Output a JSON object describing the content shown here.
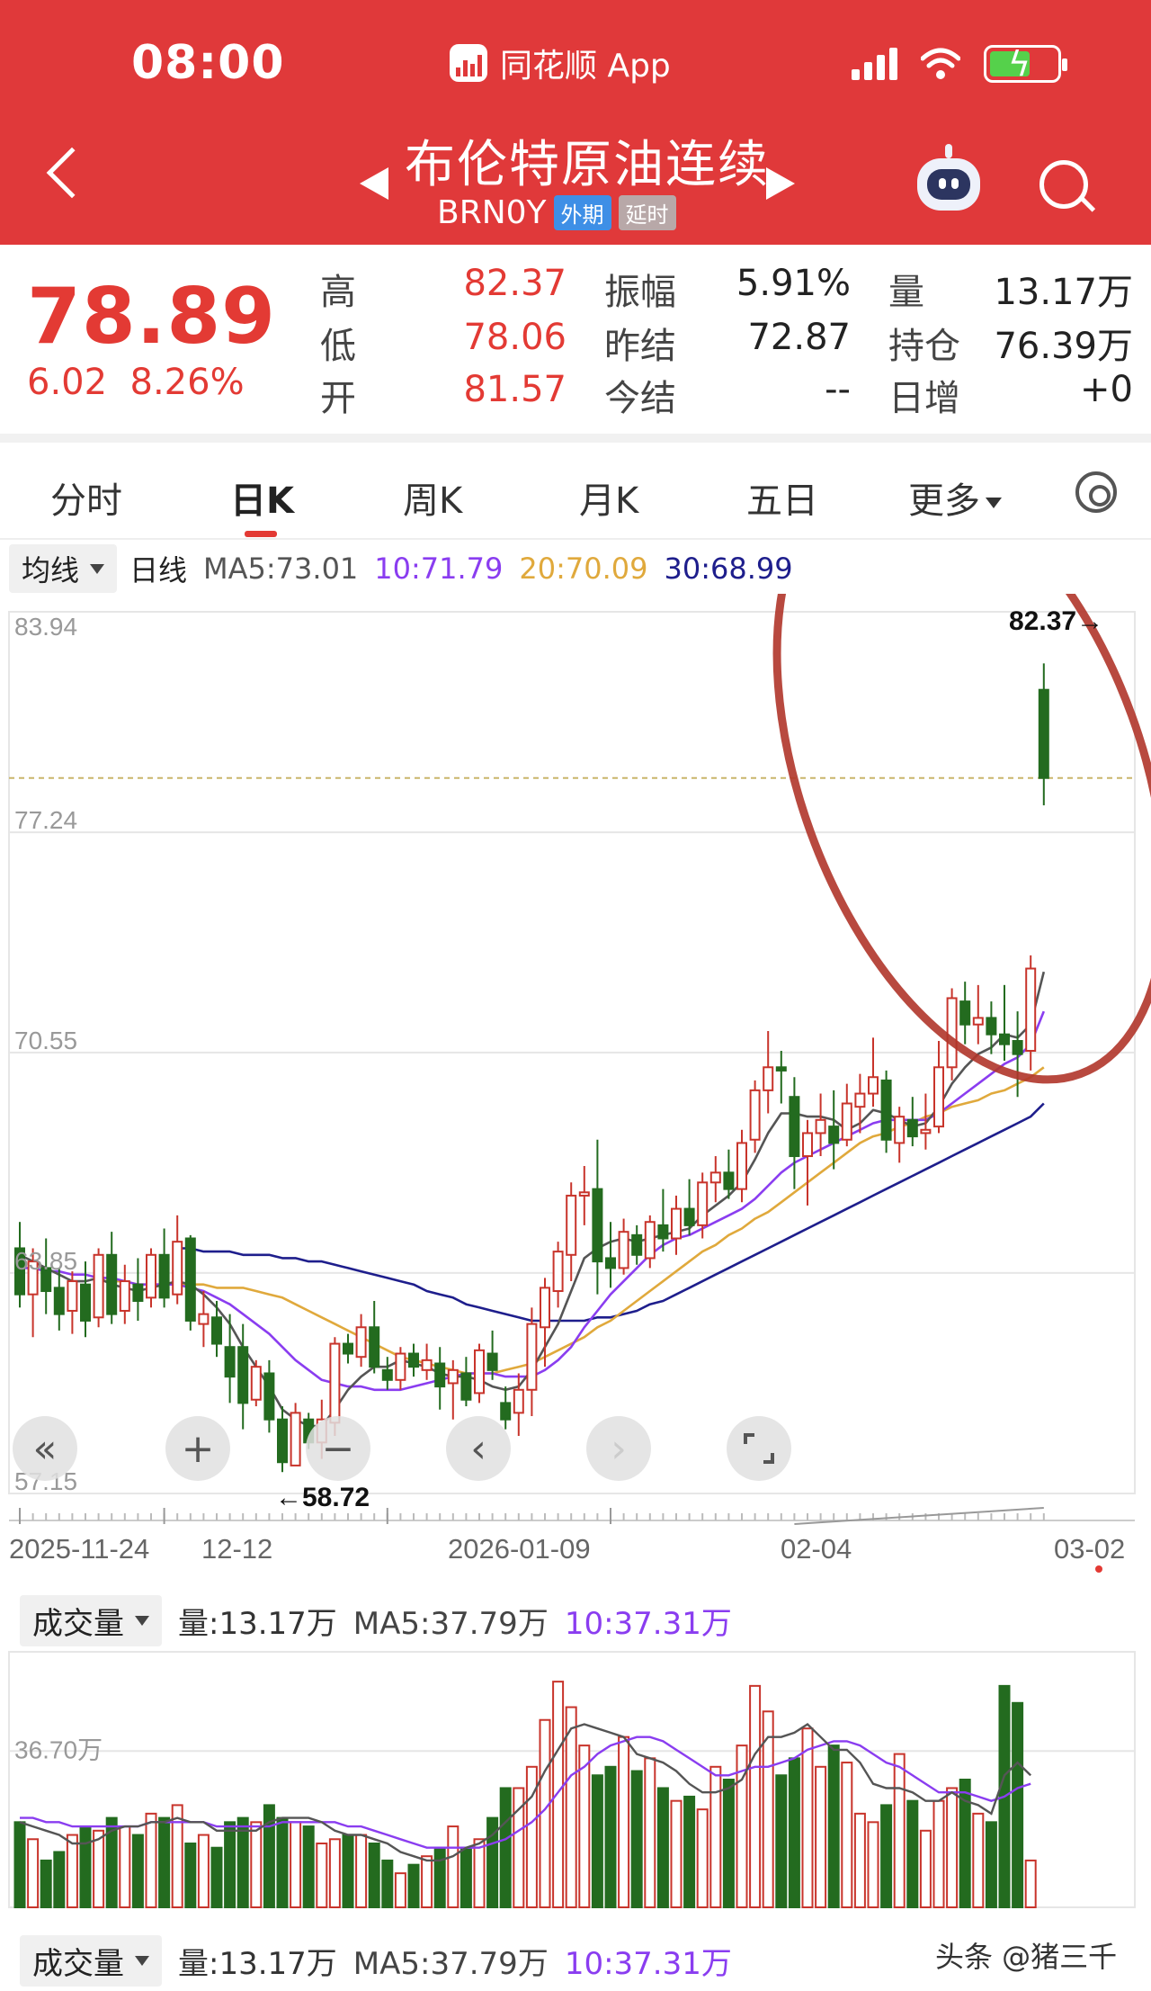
{
  "status_bar": {
    "time": "08:00",
    "app_name": "同花顺 App"
  },
  "header": {
    "title": "布伦特原油连续",
    "code": "BRN0Y",
    "badge_market": "外期",
    "badge_delay": "延时"
  },
  "quote": {
    "price": "78.89",
    "change": "6.02",
    "change_pct": "8.26%",
    "high_label": "高",
    "high": "82.37",
    "low_label": "低",
    "low": "78.06",
    "open_label": "开",
    "open": "81.57",
    "amplitude_label": "振幅",
    "amplitude": "5.91%",
    "prev_settle_label": "昨结",
    "prev_settle": "72.87",
    "settle_label": "今结",
    "settle": "--",
    "volume_label": "量",
    "volume": "13.17万",
    "open_interest_label": "持仓",
    "open_interest": "76.39万",
    "daily_change_label": "日增",
    "daily_change": "+0"
  },
  "tabs": [
    "分时",
    "日K",
    "周K",
    "月K",
    "五日",
    "更多"
  ],
  "active_tab": "日K",
  "ma_legend": {
    "dropdown": "均线",
    "period": "日线",
    "ma5": "MA5:73.01",
    "ma10": "10:71.79",
    "ma20": "20:70.09",
    "ma30": "30:68.99"
  },
  "colors": {
    "header_red": "#e0393a",
    "up_red": "#c8342b",
    "down_green": "#236b1f",
    "ma5": "#555555",
    "ma10": "#8a3df0",
    "ma20": "#e0a93c",
    "ma30": "#1e1e8c",
    "circle": "#b0352a"
  },
  "price_axis": [
    "83.94",
    "77.24",
    "70.55",
    "63.85",
    "57.15"
  ],
  "chart_annotations": {
    "high_marker": "82.37→",
    "low_marker": "←58.72"
  },
  "date_axis": [
    "2025-11-24",
    "12-12",
    "2026-01-09",
    "02-04",
    "03-02"
  ],
  "controls": [
    "fast-back",
    "zoom-in",
    "zoom-out",
    "step-left",
    "step-right",
    "fullscreen"
  ],
  "volume_panel": {
    "dropdown": "成交量",
    "volume": "量:13.17万",
    "ma5": "MA5:37.79万",
    "ma10": "10:37.31万",
    "axis_label": "36.70万"
  },
  "volume_panel_2": {
    "dropdown": "成交量",
    "volume": "量:13.17万",
    "ma5": "MA5:37.79万",
    "ma10": "10:37.31万"
  },
  "watermark": "头条 @猪三千",
  "chart_data": {
    "type": "candlestick",
    "ylim": [
      57.15,
      83.94
    ],
    "candles": [
      {
        "o": 64.6,
        "h": 65.4,
        "l": 62.8,
        "c": 63.2
      },
      {
        "o": 63.2,
        "h": 64.6,
        "l": 61.9,
        "c": 64.2
      },
      {
        "o": 64.0,
        "h": 64.9,
        "l": 62.6,
        "c": 63.3
      },
      {
        "o": 63.4,
        "h": 64.0,
        "l": 62.1,
        "c": 62.6
      },
      {
        "o": 62.7,
        "h": 63.9,
        "l": 62.0,
        "c": 63.6
      },
      {
        "o": 63.5,
        "h": 64.2,
        "l": 61.9,
        "c": 62.4
      },
      {
        "o": 62.5,
        "h": 64.6,
        "l": 62.2,
        "c": 64.4
      },
      {
        "o": 64.4,
        "h": 65.1,
        "l": 62.3,
        "c": 62.6
      },
      {
        "o": 62.7,
        "h": 64.1,
        "l": 62.3,
        "c": 63.6
      },
      {
        "o": 63.5,
        "h": 64.3,
        "l": 62.4,
        "c": 63.0
      },
      {
        "o": 63.1,
        "h": 64.6,
        "l": 62.8,
        "c": 64.4
      },
      {
        "o": 64.4,
        "h": 65.2,
        "l": 62.8,
        "c": 63.1
      },
      {
        "o": 63.2,
        "h": 65.6,
        "l": 62.9,
        "c": 64.8
      },
      {
        "o": 64.9,
        "h": 65.0,
        "l": 62.1,
        "c": 62.4
      },
      {
        "o": 62.3,
        "h": 63.3,
        "l": 61.6,
        "c": 62.6
      },
      {
        "o": 62.5,
        "h": 63.0,
        "l": 61.3,
        "c": 61.7
      },
      {
        "o": 61.6,
        "h": 62.6,
        "l": 59.9,
        "c": 60.7
      },
      {
        "o": 61.6,
        "h": 62.3,
        "l": 59.1,
        "c": 59.9
      },
      {
        "o": 60.0,
        "h": 61.2,
        "l": 59.8,
        "c": 61.0
      },
      {
        "o": 60.8,
        "h": 61.2,
        "l": 59.0,
        "c": 59.4
      },
      {
        "o": 59.4,
        "h": 59.8,
        "l": 57.8,
        "c": 58.1
      },
      {
        "o": 58.0,
        "h": 59.9,
        "l": 58.0,
        "c": 59.6
      },
      {
        "o": 59.4,
        "h": 59.6,
        "l": 58.5,
        "c": 58.7
      },
      {
        "o": 58.7,
        "h": 60.0,
        "l": 58.2,
        "c": 59.4
      },
      {
        "o": 59.3,
        "h": 61.9,
        "l": 58.9,
        "c": 61.7
      },
      {
        "o": 61.7,
        "h": 62.0,
        "l": 61.1,
        "c": 61.4
      },
      {
        "o": 61.3,
        "h": 62.6,
        "l": 61.0,
        "c": 62.2
      },
      {
        "o": 62.2,
        "h": 63.0,
        "l": 60.8,
        "c": 61.0
      },
      {
        "o": 60.9,
        "h": 61.3,
        "l": 60.3,
        "c": 60.6
      },
      {
        "o": 60.6,
        "h": 61.6,
        "l": 60.3,
        "c": 61.4
      },
      {
        "o": 61.4,
        "h": 61.7,
        "l": 60.7,
        "c": 61.0
      },
      {
        "o": 60.9,
        "h": 61.7,
        "l": 60.6,
        "c": 61.2
      },
      {
        "o": 61.1,
        "h": 61.6,
        "l": 59.7,
        "c": 60.4
      },
      {
        "o": 60.5,
        "h": 61.2,
        "l": 59.4,
        "c": 60.9
      },
      {
        "o": 60.8,
        "h": 61.3,
        "l": 59.8,
        "c": 60.0
      },
      {
        "o": 60.2,
        "h": 61.7,
        "l": 59.9,
        "c": 61.5
      },
      {
        "o": 61.4,
        "h": 62.1,
        "l": 60.6,
        "c": 60.9
      },
      {
        "o": 59.9,
        "h": 60.4,
        "l": 59.1,
        "c": 59.4
      },
      {
        "o": 59.6,
        "h": 60.8,
        "l": 58.9,
        "c": 60.3
      },
      {
        "o": 60.3,
        "h": 62.8,
        "l": 59.5,
        "c": 62.3
      },
      {
        "o": 62.2,
        "h": 63.7,
        "l": 61.0,
        "c": 63.4
      },
      {
        "o": 63.3,
        "h": 64.8,
        "l": 62.8,
        "c": 64.5
      },
      {
        "o": 64.4,
        "h": 66.6,
        "l": 63.6,
        "c": 66.2
      },
      {
        "o": 66.2,
        "h": 67.1,
        "l": 65.3,
        "c": 66.3
      },
      {
        "o": 66.4,
        "h": 67.9,
        "l": 63.2,
        "c": 64.2
      },
      {
        "o": 64.3,
        "h": 65.4,
        "l": 63.4,
        "c": 64.0
      },
      {
        "o": 64.0,
        "h": 65.5,
        "l": 63.8,
        "c": 65.1
      },
      {
        "o": 65.0,
        "h": 65.3,
        "l": 64.1,
        "c": 64.4
      },
      {
        "o": 64.3,
        "h": 65.6,
        "l": 64.0,
        "c": 65.4
      },
      {
        "o": 65.3,
        "h": 66.4,
        "l": 64.5,
        "c": 64.9
      },
      {
        "o": 64.9,
        "h": 66.2,
        "l": 64.4,
        "c": 65.8
      },
      {
        "o": 65.8,
        "h": 66.7,
        "l": 65.0,
        "c": 65.3
      },
      {
        "o": 65.3,
        "h": 66.9,
        "l": 64.9,
        "c": 66.6
      },
      {
        "o": 66.6,
        "h": 67.4,
        "l": 66.0,
        "c": 66.9
      },
      {
        "o": 66.9,
        "h": 67.6,
        "l": 66.1,
        "c": 66.4
      },
      {
        "o": 66.4,
        "h": 68.2,
        "l": 66.0,
        "c": 67.8
      },
      {
        "o": 67.9,
        "h": 69.7,
        "l": 67.5,
        "c": 69.4
      },
      {
        "o": 69.4,
        "h": 71.2,
        "l": 68.7,
        "c": 70.1
      },
      {
        "o": 70.1,
        "h": 70.6,
        "l": 69.0,
        "c": 70.0
      },
      {
        "o": 69.2,
        "h": 69.8,
        "l": 66.4,
        "c": 67.4
      },
      {
        "o": 67.4,
        "h": 68.5,
        "l": 65.9,
        "c": 68.1
      },
      {
        "o": 68.1,
        "h": 69.3,
        "l": 67.4,
        "c": 68.5
      },
      {
        "o": 68.3,
        "h": 69.4,
        "l": 67.0,
        "c": 67.8
      },
      {
        "o": 67.9,
        "h": 69.6,
        "l": 67.7,
        "c": 69.0
      },
      {
        "o": 68.9,
        "h": 69.9,
        "l": 68.1,
        "c": 69.3
      },
      {
        "o": 69.3,
        "h": 71.0,
        "l": 68.9,
        "c": 69.8
      },
      {
        "o": 69.7,
        "h": 70.0,
        "l": 67.5,
        "c": 67.9
      },
      {
        "o": 67.8,
        "h": 68.9,
        "l": 67.2,
        "c": 68.6
      },
      {
        "o": 68.5,
        "h": 69.2,
        "l": 67.7,
        "c": 68.0
      },
      {
        "o": 68.1,
        "h": 69.3,
        "l": 67.6,
        "c": 68.2
      },
      {
        "o": 68.3,
        "h": 70.9,
        "l": 68.1,
        "c": 70.1
      },
      {
        "o": 70.1,
        "h": 72.5,
        "l": 69.7,
        "c": 72.2
      },
      {
        "o": 72.1,
        "h": 72.7,
        "l": 70.8,
        "c": 71.4
      },
      {
        "o": 71.4,
        "h": 72.6,
        "l": 70.8,
        "c": 71.6
      },
      {
        "o": 71.6,
        "h": 72.1,
        "l": 70.5,
        "c": 71.1
      },
      {
        "o": 71.1,
        "h": 72.6,
        "l": 70.3,
        "c": 70.8
      },
      {
        "o": 70.9,
        "h": 71.8,
        "l": 69.2,
        "c": 70.5
      },
      {
        "o": 70.6,
        "h": 73.5,
        "l": 70.0,
        "c": 73.1
      },
      {
        "o": 81.57,
        "h": 82.37,
        "l": 78.06,
        "c": 78.89
      }
    ],
    "ma5": [
      64.4,
      64.2,
      64.0,
      63.8,
      63.6,
      63.6,
      63.7,
      63.5,
      63.4,
      63.3,
      63.4,
      63.5,
      63.6,
      63.5,
      63.2,
      62.8,
      62.3,
      61.6,
      61.0,
      60.4,
      59.7,
      59.4,
      59.2,
      59.2,
      59.7,
      60.3,
      60.7,
      61.0,
      61.0,
      61.2,
      61.1,
      61.0,
      60.8,
      60.7,
      60.7,
      60.6,
      60.4,
      60.3,
      60.4,
      60.9,
      61.6,
      62.3,
      63.3,
      64.3,
      64.6,
      64.8,
      64.9,
      64.8,
      64.9,
      65.0,
      65.1,
      65.2,
      65.6,
      65.9,
      66.2,
      66.6,
      67.3,
      68.1,
      68.7,
      68.7,
      68.6,
      68.6,
      68.5,
      68.2,
      68.4,
      68.8,
      68.7,
      68.5,
      68.3,
      68.4,
      68.9,
      69.6,
      70.1,
      70.5,
      70.7,
      71.1,
      71.0,
      71.4,
      73.0
    ],
    "ma10": [
      64.0,
      64.0,
      63.9,
      63.9,
      63.8,
      63.8,
      63.7,
      63.7,
      63.6,
      63.5,
      63.5,
      63.5,
      63.5,
      63.4,
      63.3,
      63.1,
      62.9,
      62.6,
      62.3,
      62.0,
      61.6,
      61.2,
      60.9,
      60.6,
      60.5,
      60.4,
      60.4,
      60.3,
      60.3,
      60.3,
      60.4,
      60.5,
      60.6,
      60.7,
      60.8,
      60.8,
      60.8,
      60.7,
      60.7,
      60.7,
      60.9,
      61.2,
      61.6,
      62.2,
      62.7,
      63.2,
      63.6,
      64.0,
      64.4,
      64.7,
      64.9,
      65.0,
      65.2,
      65.4,
      65.6,
      65.8,
      66.1,
      66.5,
      66.9,
      67.2,
      67.4,
      67.6,
      67.8,
      68.0,
      68.2,
      68.4,
      68.5,
      68.5,
      68.5,
      68.5,
      68.7,
      69.0,
      69.3,
      69.6,
      69.9,
      70.2,
      70.4,
      70.8,
      71.8
    ],
    "ma20": [
      63.6,
      63.6,
      63.6,
      63.5,
      63.5,
      63.5,
      63.5,
      63.5,
      63.5,
      63.4,
      63.4,
      63.4,
      63.3,
      63.2,
      63.1,
      62.9,
      62.7,
      62.5,
      62.3,
      62.1,
      61.9,
      61.7,
      61.5,
      61.3,
      61.2,
      61.1,
      61.0,
      60.9,
      60.8,
      60.8,
      60.8,
      60.9,
      61.0,
      61.1,
      61.3,
      61.5,
      61.7,
      61.9,
      62.2,
      62.4,
      62.7,
      63.0,
      63.3,
      63.6,
      63.9,
      64.2,
      64.5,
      64.7,
      65.0,
      65.2,
      65.5,
      65.7,
      66.0,
      66.3,
      66.6,
      66.9,
      67.2,
      67.5,
      67.8,
      68.0,
      68.1,
      68.3,
      68.4,
      68.6,
      68.7,
      68.9,
      69.0,
      69.1,
      69.3,
      69.4,
      69.6,
      69.8,
      70.1
    ],
    "ma30": [
      64.6,
      64.6,
      64.5,
      64.5,
      64.5,
      64.4,
      64.4,
      64.4,
      64.3,
      64.3,
      64.2,
      64.2,
      64.1,
      64.0,
      63.9,
      63.8,
      63.7,
      63.6,
      63.5,
      63.3,
      63.2,
      63.1,
      62.9,
      62.8,
      62.7,
      62.6,
      62.5,
      62.4,
      62.4,
      62.4,
      62.4,
      62.4,
      62.5,
      62.5,
      62.6,
      62.7,
      62.9,
      63.0,
      63.2,
      63.4,
      63.6,
      63.8,
      64.0,
      64.2,
      64.4,
      64.6,
      64.8,
      65.0,
      65.2,
      65.4,
      65.6,
      65.8,
      66.0,
      66.2,
      66.4,
      66.6,
      66.8,
      67.0,
      67.2,
      67.4,
      67.6,
      67.8,
      68.0,
      68.2,
      68.4,
      68.6,
      69.0
    ],
    "volume": [
      20,
      16,
      11,
      13,
      17,
      19,
      18,
      21,
      19,
      17,
      22,
      21,
      24,
      15,
      17,
      14,
      20,
      21,
      20,
      24,
      21,
      20,
      19,
      15,
      16,
      17,
      17,
      15,
      11,
      8,
      10,
      12,
      14,
      19,
      14,
      16,
      21,
      28,
      28,
      33,
      44,
      53,
      47,
      38,
      31,
      33,
      40,
      32,
      35,
      28,
      25,
      26,
      23,
      33,
      30,
      38,
      52,
      46,
      31,
      35,
      42,
      33,
      38,
      34,
      22,
      20,
      24,
      36,
      25,
      18,
      25,
      28,
      30,
      22,
      20,
      52,
      48,
      11
    ],
    "vol_ma5": [
      20,
      19,
      18,
      17,
      15,
      15,
      16,
      18,
      19,
      19,
      20,
      20,
      21,
      20,
      20,
      18,
      18,
      18,
      18,
      20,
      21,
      21,
      21,
      20,
      18,
      17,
      17,
      16,
      15,
      13,
      12,
      11,
      11,
      12,
      14,
      15,
      17,
      20,
      23,
      26,
      32,
      37,
      42,
      43,
      42,
      41,
      40,
      36,
      35,
      34,
      32,
      29,
      27,
      27,
      28,
      30,
      36,
      40,
      40,
      41,
      43,
      40,
      37,
      37,
      34,
      29,
      28,
      28,
      27,
      25,
      25,
      27,
      25,
      24,
      22,
      31,
      34,
      31
    ],
    "vol_ma10": [
      21,
      21,
      20,
      20,
      19,
      19,
      19,
      19,
      19,
      19,
      20,
      20,
      20,
      20,
      20,
      19,
      19,
      19,
      19,
      19,
      20,
      20,
      20,
      20,
      20,
      19,
      19,
      18,
      17,
      16,
      15,
      14,
      14,
      14,
      14,
      14,
      15,
      16,
      18,
      20,
      23,
      27,
      31,
      33,
      36,
      38,
      39,
      40,
      40,
      39,
      37,
      35,
      33,
      31,
      31,
      32,
      33,
      33,
      34,
      35,
      37,
      38,
      39,
      39,
      38,
      36,
      34,
      33,
      31,
      29,
      27,
      27,
      27,
      26,
      25,
      26,
      28,
      29
    ]
  }
}
